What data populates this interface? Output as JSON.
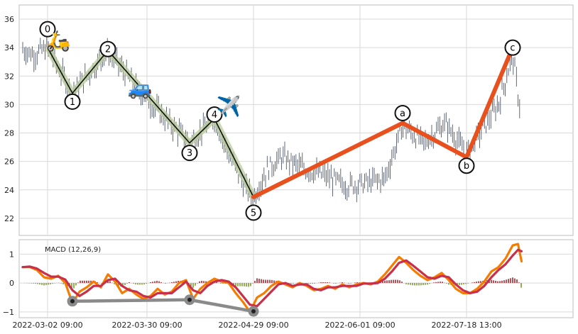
{
  "chart_data": [
    {
      "type": "candlestick",
      "ylim": [
        20.8,
        37
      ],
      "yticks": [
        22,
        24,
        26,
        28,
        30,
        32,
        34,
        36
      ],
      "grid": true,
      "x_domain": [
        -8,
        148
      ],
      "xtick_labels": [
        {
          "x": 0,
          "label": "2022-03-02 09:00"
        },
        {
          "x": 28,
          "label": "2022-03-30 09:00"
        },
        {
          "x": 58,
          "label": "2022-04-29 09:00"
        },
        {
          "x": 88,
          "label": "2022-06-01 09:00"
        },
        {
          "x": 118,
          "label": "2022-07-18 13:00"
        }
      ],
      "price_path": [
        {
          "x": -8,
          "y": 34.0
        },
        {
          "x": -4,
          "y": 33.5
        },
        {
          "x": 0,
          "y": 34.0
        },
        {
          "x": 7,
          "y": 30.8
        },
        {
          "x": 17,
          "y": 33.8
        },
        {
          "x": 24,
          "y": 31.5
        },
        {
          "x": 30,
          "y": 29.8
        },
        {
          "x": 40,
          "y": 27.3
        },
        {
          "x": 47,
          "y": 29.0
        },
        {
          "x": 52,
          "y": 26.0
        },
        {
          "x": 56,
          "y": 24.0
        },
        {
          "x": 58,
          "y": 23.5
        },
        {
          "x": 62,
          "y": 25.5
        },
        {
          "x": 66,
          "y": 26.3
        },
        {
          "x": 72,
          "y": 25.5
        },
        {
          "x": 78,
          "y": 25.0
        },
        {
          "x": 84,
          "y": 24.3
        },
        {
          "x": 90,
          "y": 24.5
        },
        {
          "x": 95,
          "y": 24.8
        },
        {
          "x": 100,
          "y": 28.5
        },
        {
          "x": 106,
          "y": 27.3
        },
        {
          "x": 112,
          "y": 28.7
        },
        {
          "x": 118,
          "y": 26.5
        },
        {
          "x": 123,
          "y": 28.5
        },
        {
          "x": 127,
          "y": 30.0
        },
        {
          "x": 131,
          "y": 33.5
        },
        {
          "x": 133,
          "y": 29.8
        }
      ],
      "impulse_wave": [
        {
          "label": "0",
          "x": 0,
          "y": 34.0
        },
        {
          "label": "1",
          "x": 7,
          "y": 30.8
        },
        {
          "label": "2",
          "x": 17,
          "y": 33.8
        },
        {
          "label": "3",
          "x": 40,
          "y": 27.3
        },
        {
          "label": "4",
          "x": 47,
          "y": 29.0
        },
        {
          "label": "5",
          "x": 58,
          "y": 23.5
        }
      ],
      "corrective_wave": [
        {
          "label": "5",
          "x": 58,
          "y": 23.5
        },
        {
          "label": "a",
          "x": 100,
          "y": 28.7
        },
        {
          "label": "b",
          "x": 118,
          "y": 26.3
        },
        {
          "label": "c",
          "x": 131,
          "y": 34.0
        }
      ],
      "wave_label_offsets": [
        {
          "label": "0",
          "dy": 1.3
        },
        {
          "label": "1",
          "dy": -0.6
        },
        {
          "label": "2",
          "dy": 0.1
        },
        {
          "label": "3",
          "dy": -0.7
        },
        {
          "label": "4",
          "dy": 0.3
        },
        {
          "label": "5",
          "dy": -1.1
        },
        {
          "label": "a",
          "dy": 0.7
        },
        {
          "label": "b",
          "dy": -0.6
        },
        {
          "label": "c",
          "dy": 0
        }
      ],
      "markers": [
        {
          "symbol": "🛵",
          "x": 3,
          "y": 34.5
        },
        {
          "symbol": "🚙",
          "x": 26,
          "y": 31.2
        },
        {
          "symbol": "✈️",
          "x": 51,
          "y": 29.9
        }
      ]
    },
    {
      "type": "line",
      "title": "MACD (12,26,9)",
      "ylim": [
        -1.2,
        1.5
      ],
      "yticks": [
        -1,
        0,
        1
      ],
      "grid": true,
      "series": [
        {
          "color": "#f57c00",
          "role": "macd",
          "points": [
            {
              "x": -7,
              "y": 0.55
            },
            {
              "x": -5,
              "y": 0.55
            },
            {
              "x": -3,
              "y": 0.45
            },
            {
              "x": -1,
              "y": 0.2
            },
            {
              "x": 1,
              "y": 0.15
            },
            {
              "x": 3,
              "y": 0.25
            },
            {
              "x": 5,
              "y": 0.0
            },
            {
              "x": 7,
              "y": -0.7
            },
            {
              "x": 9,
              "y": -0.3
            },
            {
              "x": 11,
              "y": -0.15
            },
            {
              "x": 13,
              "y": 0.05
            },
            {
              "x": 15,
              "y": -0.15
            },
            {
              "x": 17,
              "y": 0.3
            },
            {
              "x": 19,
              "y": 0.05
            },
            {
              "x": 21,
              "y": -0.35
            },
            {
              "x": 23,
              "y": -0.2
            },
            {
              "x": 25,
              "y": -0.4
            },
            {
              "x": 27,
              "y": -0.55
            },
            {
              "x": 29,
              "y": -0.45
            },
            {
              "x": 31,
              "y": -0.2
            },
            {
              "x": 33,
              "y": -0.4
            },
            {
              "x": 35,
              "y": -0.3
            },
            {
              "x": 37,
              "y": 0.0
            },
            {
              "x": 39,
              "y": 0.1
            },
            {
              "x": 41,
              "y": -0.55
            },
            {
              "x": 43,
              "y": -0.2
            },
            {
              "x": 45,
              "y": 0.0
            },
            {
              "x": 47,
              "y": 0.15
            },
            {
              "x": 49,
              "y": 0.05
            },
            {
              "x": 51,
              "y": 0.0
            },
            {
              "x": 53,
              "y": -0.35
            },
            {
              "x": 55,
              "y": -0.65
            },
            {
              "x": 57,
              "y": -1.0
            },
            {
              "x": 59,
              "y": -0.5
            },
            {
              "x": 61,
              "y": -0.35
            },
            {
              "x": 63,
              "y": -0.1
            },
            {
              "x": 65,
              "y": 0.05
            },
            {
              "x": 67,
              "y": -0.05
            },
            {
              "x": 69,
              "y": -0.15
            },
            {
              "x": 71,
              "y": 0.0
            },
            {
              "x": 73,
              "y": -0.1
            },
            {
              "x": 75,
              "y": -0.25
            },
            {
              "x": 77,
              "y": -0.2
            },
            {
              "x": 79,
              "y": -0.1
            },
            {
              "x": 81,
              "y": -0.2
            },
            {
              "x": 83,
              "y": -0.05
            },
            {
              "x": 85,
              "y": -0.15
            },
            {
              "x": 87,
              "y": -0.05
            },
            {
              "x": 89,
              "y": 0.0
            },
            {
              "x": 91,
              "y": -0.05
            },
            {
              "x": 93,
              "y": 0.05
            },
            {
              "x": 95,
              "y": 0.3
            },
            {
              "x": 97,
              "y": 0.6
            },
            {
              "x": 99,
              "y": 0.9
            },
            {
              "x": 101,
              "y": 0.7
            },
            {
              "x": 103,
              "y": 0.45
            },
            {
              "x": 105,
              "y": 0.25
            },
            {
              "x": 107,
              "y": 0.1
            },
            {
              "x": 109,
              "y": 0.2
            },
            {
              "x": 111,
              "y": 0.35
            },
            {
              "x": 113,
              "y": 0.1
            },
            {
              "x": 115,
              "y": -0.2
            },
            {
              "x": 117,
              "y": -0.35
            },
            {
              "x": 119,
              "y": -0.35
            },
            {
              "x": 121,
              "y": -0.2
            },
            {
              "x": 123,
              "y": 0.05
            },
            {
              "x": 125,
              "y": 0.4
            },
            {
              "x": 127,
              "y": 0.55
            },
            {
              "x": 129,
              "y": 0.85
            },
            {
              "x": 131,
              "y": 1.3
            },
            {
              "x": 132.5,
              "y": 1.35
            },
            {
              "x": 133.5,
              "y": 0.75
            }
          ]
        },
        {
          "color": "#c8304a",
          "role": "signal",
          "points": [
            {
              "x": -7,
              "y": 0.55
            },
            {
              "x": -5,
              "y": 0.57
            },
            {
              "x": -3,
              "y": 0.5
            },
            {
              "x": -1,
              "y": 0.35
            },
            {
              "x": 1,
              "y": 0.22
            },
            {
              "x": 3,
              "y": 0.22
            },
            {
              "x": 5,
              "y": 0.12
            },
            {
              "x": 7,
              "y": -0.25
            },
            {
              "x": 9,
              "y": -0.45
            },
            {
              "x": 11,
              "y": -0.3
            },
            {
              "x": 13,
              "y": -0.1
            },
            {
              "x": 15,
              "y": -0.1
            },
            {
              "x": 17,
              "y": 0.1
            },
            {
              "x": 19,
              "y": 0.15
            },
            {
              "x": 21,
              "y": -0.1
            },
            {
              "x": 23,
              "y": -0.25
            },
            {
              "x": 25,
              "y": -0.3
            },
            {
              "x": 27,
              "y": -0.45
            },
            {
              "x": 29,
              "y": -0.5
            },
            {
              "x": 31,
              "y": -0.35
            },
            {
              "x": 33,
              "y": -0.35
            },
            {
              "x": 35,
              "y": -0.35
            },
            {
              "x": 37,
              "y": -0.15
            },
            {
              "x": 39,
              "y": 0.05
            },
            {
              "x": 41,
              "y": -0.25
            },
            {
              "x": 43,
              "y": -0.35
            },
            {
              "x": 45,
              "y": -0.1
            },
            {
              "x": 47,
              "y": 0.05
            },
            {
              "x": 49,
              "y": 0.1
            },
            {
              "x": 51,
              "y": 0.05
            },
            {
              "x": 53,
              "y": -0.15
            },
            {
              "x": 55,
              "y": -0.45
            },
            {
              "x": 57,
              "y": -0.75
            },
            {
              "x": 59,
              "y": -0.8
            },
            {
              "x": 61,
              "y": -0.55
            },
            {
              "x": 63,
              "y": -0.3
            },
            {
              "x": 65,
              "y": -0.05
            },
            {
              "x": 67,
              "y": 0.0
            },
            {
              "x": 69,
              "y": -0.1
            },
            {
              "x": 71,
              "y": -0.05
            },
            {
              "x": 73,
              "y": -0.05
            },
            {
              "x": 75,
              "y": -0.2
            },
            {
              "x": 77,
              "y": -0.25
            },
            {
              "x": 79,
              "y": -0.15
            },
            {
              "x": 81,
              "y": -0.15
            },
            {
              "x": 83,
              "y": -0.1
            },
            {
              "x": 85,
              "y": -0.1
            },
            {
              "x": 87,
              "y": -0.1
            },
            {
              "x": 89,
              "y": -0.02
            },
            {
              "x": 91,
              "y": -0.02
            },
            {
              "x": 93,
              "y": 0.0
            },
            {
              "x": 95,
              "y": 0.15
            },
            {
              "x": 97,
              "y": 0.4
            },
            {
              "x": 99,
              "y": 0.7
            },
            {
              "x": 101,
              "y": 0.78
            },
            {
              "x": 103,
              "y": 0.6
            },
            {
              "x": 105,
              "y": 0.4
            },
            {
              "x": 107,
              "y": 0.2
            },
            {
              "x": 109,
              "y": 0.15
            },
            {
              "x": 111,
              "y": 0.25
            },
            {
              "x": 113,
              "y": 0.2
            },
            {
              "x": 115,
              "y": -0.05
            },
            {
              "x": 117,
              "y": -0.25
            },
            {
              "x": 119,
              "y": -0.35
            },
            {
              "x": 121,
              "y": -0.3
            },
            {
              "x": 123,
              "y": -0.1
            },
            {
              "x": 125,
              "y": 0.2
            },
            {
              "x": 127,
              "y": 0.45
            },
            {
              "x": 129,
              "y": 0.65
            },
            {
              "x": 131,
              "y": 0.95
            },
            {
              "x": 132.5,
              "y": 1.15
            },
            {
              "x": 133.5,
              "y": 1.1
            }
          ]
        }
      ],
      "divergence_line": {
        "color": "#8a8a8a",
        "points": [
          {
            "x": 7,
            "y": -0.63
          },
          {
            "x": 40,
            "y": -0.58
          },
          {
            "x": 58,
            "y": -0.98
          }
        ]
      },
      "histogram_colors": {
        "positive": "#a0282d",
        "negative": "#7a9a2a"
      }
    }
  ]
}
